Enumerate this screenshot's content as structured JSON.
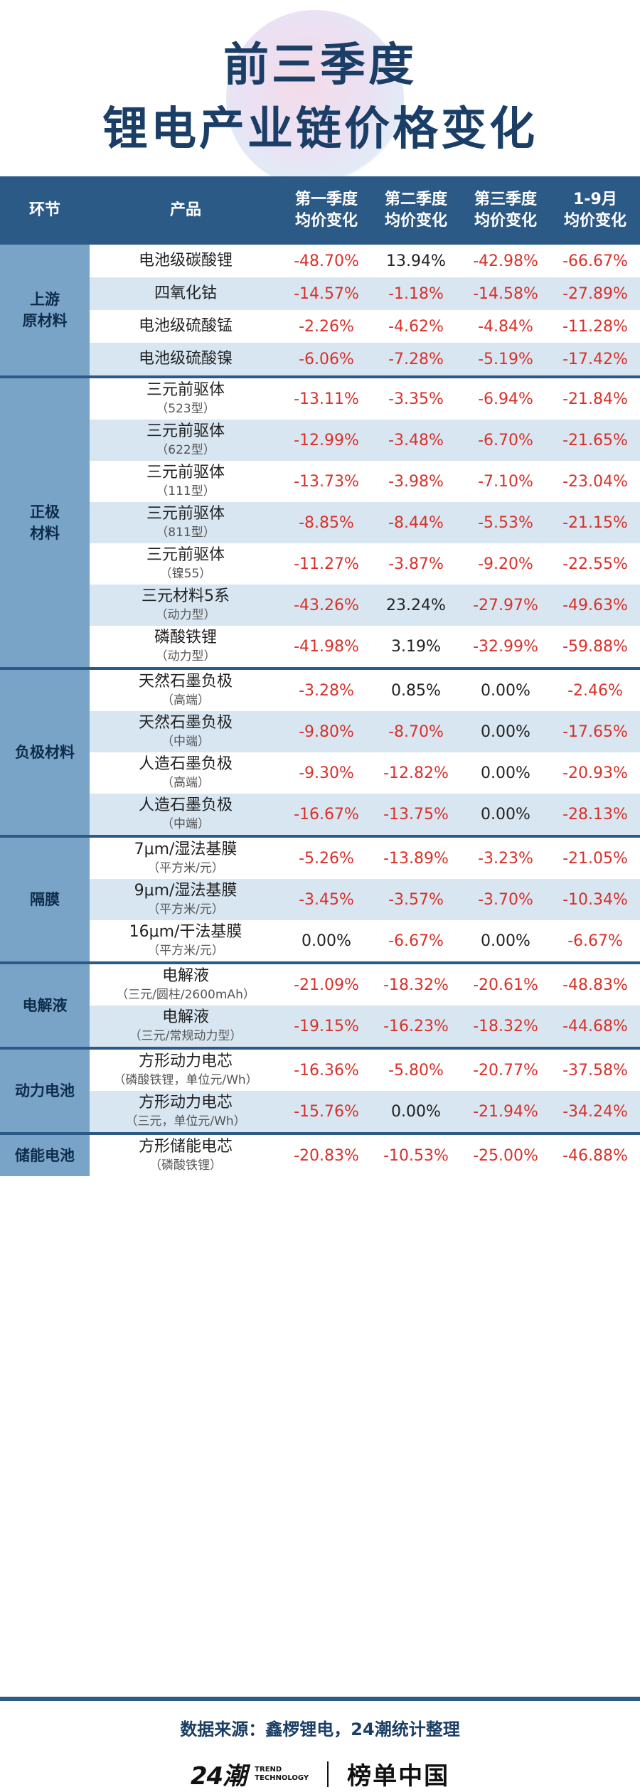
{
  "title": {
    "line1": "前三季度",
    "line2": "锂电产业链价格变化"
  },
  "columns": {
    "segment": "环节",
    "product": "产品",
    "q1": "第一季度\n均价变化",
    "q2": "第二季度\n均价变化",
    "q3": "第三季度\n均价变化",
    "ytd": "1-9月\n均价变化"
  },
  "groups": [
    {
      "label": "上游\n原材料",
      "rows": [
        {
          "name": "电池级碳酸锂",
          "sub": "",
          "q1": "-48.70%",
          "q2": "13.94%",
          "q3": "-42.98%",
          "ytd": "-66.67%"
        },
        {
          "name": "四氧化钴",
          "sub": "",
          "q1": "-14.57%",
          "q2": "-1.18%",
          "q3": "-14.58%",
          "ytd": "-27.89%"
        },
        {
          "name": "电池级硫酸锰",
          "sub": "",
          "q1": "-2.26%",
          "q2": "-4.62%",
          "q3": "-4.84%",
          "ytd": "-11.28%"
        },
        {
          "name": "电池级硫酸镍",
          "sub": "",
          "q1": "-6.06%",
          "q2": "-7.28%",
          "q3": "-5.19%",
          "ytd": "-17.42%"
        }
      ]
    },
    {
      "label": "正极\n材料",
      "rows": [
        {
          "name": "三元前驱体",
          "sub": "（523型）",
          "q1": "-13.11%",
          "q2": "-3.35%",
          "q3": "-6.94%",
          "ytd": "-21.84%"
        },
        {
          "name": "三元前驱体",
          "sub": "（622型）",
          "q1": "-12.99%",
          "q2": "-3.48%",
          "q3": "-6.70%",
          "ytd": "-21.65%"
        },
        {
          "name": "三元前驱体",
          "sub": "（111型）",
          "q1": "-13.73%",
          "q2": "-3.98%",
          "q3": "-7.10%",
          "ytd": "-23.04%"
        },
        {
          "name": "三元前驱体",
          "sub": "（811型）",
          "q1": "-8.85%",
          "q2": "-8.44%",
          "q3": "-5.53%",
          "ytd": "-21.15%"
        },
        {
          "name": "三元前驱体",
          "sub": "（镍55）",
          "q1": "-11.27%",
          "q2": "-3.87%",
          "q3": "-9.20%",
          "ytd": "-22.55%"
        },
        {
          "name": "三元材料5系",
          "sub": "（动力型）",
          "q1": "-43.26%",
          "q2": "23.24%",
          "q3": "-27.97%",
          "ytd": "-49.63%"
        },
        {
          "name": "磷酸铁锂",
          "sub": "（动力型）",
          "q1": "-41.98%",
          "q2": "3.19%",
          "q3": "-32.99%",
          "ytd": "-59.88%"
        }
      ]
    },
    {
      "label": "负极材料",
      "rows": [
        {
          "name": "天然石墨负极",
          "sub": "（高端）",
          "q1": "-3.28%",
          "q2": "0.85%",
          "q3": "0.00%",
          "ytd": "-2.46%"
        },
        {
          "name": "天然石墨负极",
          "sub": "（中端）",
          "q1": "-9.80%",
          "q2": "-8.70%",
          "q3": "0.00%",
          "ytd": "-17.65%"
        },
        {
          "name": "人造石墨负极",
          "sub": "（高端）",
          "q1": "-9.30%",
          "q2": "-12.82%",
          "q3": "0.00%",
          "ytd": "-20.93%"
        },
        {
          "name": "人造石墨负极",
          "sub": "（中端）",
          "q1": "-16.67%",
          "q2": "-13.75%",
          "q3": "0.00%",
          "ytd": "-28.13%"
        }
      ]
    },
    {
      "label": "隔膜",
      "rows": [
        {
          "name": "7μm/湿法基膜",
          "sub": "（平方米/元）",
          "q1": "-5.26%",
          "q2": "-13.89%",
          "q3": "-3.23%",
          "ytd": "-21.05%"
        },
        {
          "name": "9μm/湿法基膜",
          "sub": "（平方米/元）",
          "q1": "-3.45%",
          "q2": "-3.57%",
          "q3": "-3.70%",
          "ytd": "-10.34%"
        },
        {
          "name": "16μm/干法基膜",
          "sub": "（平方米/元）",
          "q1": "0.00%",
          "q2": "-6.67%",
          "q3": "0.00%",
          "ytd": "-6.67%"
        }
      ]
    },
    {
      "label": "电解液",
      "rows": [
        {
          "name": "电解液",
          "sub": "（三元/圆柱/2600mAh）",
          "q1": "-21.09%",
          "q2": "-18.32%",
          "q3": "-20.61%",
          "ytd": "-48.83%"
        },
        {
          "name": "电解液",
          "sub": "（三元/常规动力型）",
          "q1": "-19.15%",
          "q2": "-16.23%",
          "q3": "-18.32%",
          "ytd": "-44.68%"
        }
      ]
    },
    {
      "label": "动力电池",
      "rows": [
        {
          "name": "方形动力电芯",
          "sub": "（磷酸铁锂，单位元/Wh）",
          "q1": "-16.36%",
          "q2": "-5.80%",
          "q3": "-20.77%",
          "ytd": "-37.58%"
        },
        {
          "name": "方形动力电芯",
          "sub": "（三元，单位元/Wh）",
          "q1": "-15.76%",
          "q2": "0.00%",
          "q3": "-21.94%",
          "ytd": "-34.24%"
        }
      ]
    },
    {
      "label": "储能电池",
      "rows": [
        {
          "name": "方形储能电芯",
          "sub": "（磷酸铁锂）",
          "q1": "-20.83%",
          "q2": "-10.53%",
          "q3": "-25.00%",
          "ytd": "-46.88%"
        }
      ]
    }
  ],
  "footer": {
    "source": "数据来源：鑫椤锂电，24潮统计整理",
    "brand_24": "24潮",
    "brand_trend": "TREND\nTECHNOLOGY",
    "brand_bangdan": "榜单中国"
  },
  "colors": {
    "header_bg": "#2c5a86",
    "group_bg": "#7aa4c7",
    "row_alt": "#d8e6f1",
    "negative": "#d8312a",
    "title": "#1b3e66"
  }
}
